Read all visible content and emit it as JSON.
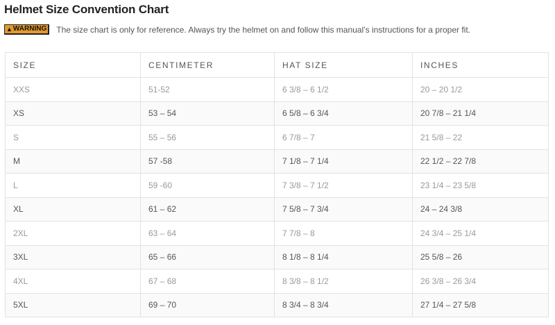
{
  "title": "Helmet Size Convention Chart",
  "warning": {
    "label": "WARNING",
    "icon": "warning-triangle-icon",
    "color": "#e39a2d",
    "text": "The size chart is only for reference. Always try the helmet on and follow this manual’s instructions for a proper fit."
  },
  "table": {
    "headers": [
      "SIZE",
      "CENTIMETER",
      "HAT SIZE",
      "INCHES"
    ],
    "rows": [
      [
        "XXS",
        "51-52",
        "6 3/8 – 6 1/2",
        "20 – 20 1/2"
      ],
      [
        "XS",
        "53 – 54",
        "6 5/8 – 6 3/4",
        "20 7/8 – 21 1/4"
      ],
      [
        "S",
        "55 – 56",
        "6 7/8 – 7",
        "21 5/8 – 22"
      ],
      [
        "M",
        "57 -58",
        "7 1/8 – 7 1/4",
        "22 1/2 – 22 7/8"
      ],
      [
        "L",
        "59 -60",
        "7 3/8 – 7 1/2",
        "23 1/4 – 23 5/8"
      ],
      [
        "XL",
        "61 – 62",
        "7 5/8 – 7 3/4",
        "24 – 24 3/8"
      ],
      [
        "2XL",
        "63 – 64",
        "7 7/8 – 8",
        "24 3/4 – 25 1/4"
      ],
      [
        "3XL",
        "65 – 66",
        "8 1/8 – 8 1/4",
        "25 5/8 – 26"
      ],
      [
        "4XL",
        "67 – 68",
        "8 3/8 – 8 1/2",
        "26 3/8 – 26 3/4"
      ],
      [
        "5XL",
        "69 – 70",
        "8 3/4 – 8 3/4",
        "27 1/4 – 27 5/8"
      ]
    ]
  }
}
